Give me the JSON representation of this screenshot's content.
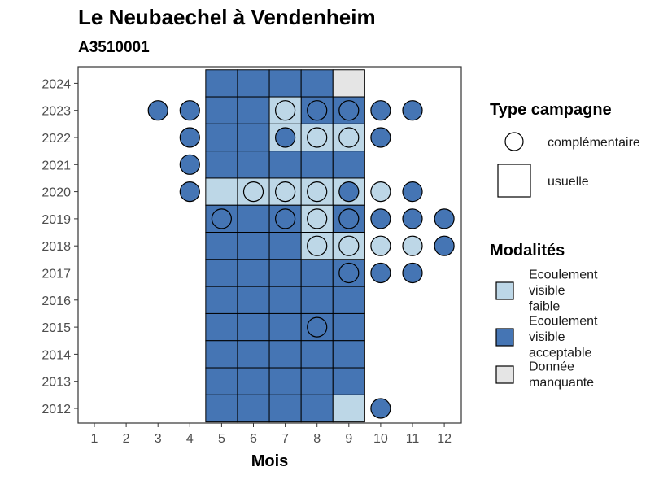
{
  "chart_data": {
    "type": "heatmap",
    "title": "Le Neubaechel à Vendenheim",
    "subtitle": "A3510001",
    "xlabel": "Mois",
    "ylabel": "",
    "x_ticks": [
      "1",
      "2",
      "3",
      "4",
      "5",
      "6",
      "7",
      "8",
      "9",
      "10",
      "11",
      "12"
    ],
    "y_ticks": [
      "2012",
      "2013",
      "2014",
      "2015",
      "2016",
      "2017",
      "2018",
      "2019",
      "2020",
      "2021",
      "2022",
      "2023",
      "2024"
    ],
    "colors": {
      "faible": "#BDD7E7",
      "acceptable": "#4575B4",
      "manquante": "#E5E5E5"
    },
    "legend_type": {
      "title": "Type campagne",
      "items": [
        {
          "shape": "circle",
          "label": "complémentaire"
        },
        {
          "shape": "square",
          "label": "usuelle"
        }
      ]
    },
    "legend_modalites": {
      "title": "Modalités",
      "items": [
        {
          "key": "faible",
          "lines": [
            "Ecoulement",
            "visible",
            "faible"
          ]
        },
        {
          "key": "acceptable",
          "lines": [
            "Ecoulement",
            "visible",
            "acceptable"
          ]
        },
        {
          "key": "manquante",
          "lines": [
            "Donnée",
            "manquante"
          ]
        }
      ]
    },
    "usuelle": [
      {
        "year": 2024,
        "months": [
          5,
          6,
          7,
          8
        ],
        "value": "acceptable"
      },
      {
        "year": 2024,
        "months": [
          9
        ],
        "value": "manquante"
      },
      {
        "year": 2023,
        "months": [
          5,
          6,
          8,
          9
        ],
        "value": "acceptable"
      },
      {
        "year": 2023,
        "months": [
          7
        ],
        "value": "faible"
      },
      {
        "year": 2022,
        "months": [
          5,
          6
        ],
        "value": "acceptable"
      },
      {
        "year": 2022,
        "months": [
          7,
          8,
          9
        ],
        "value": "faible"
      },
      {
        "year": 2021,
        "months": [
          5,
          6,
          7,
          8,
          9
        ],
        "value": "acceptable"
      },
      {
        "year": 2020,
        "months": [
          5,
          6,
          7,
          8,
          9
        ],
        "value": "faible"
      },
      {
        "year": 2019,
        "months": [
          5,
          6,
          7,
          9
        ],
        "value": "acceptable"
      },
      {
        "year": 2019,
        "months": [
          8
        ],
        "value": "faible"
      },
      {
        "year": 2018,
        "months": [
          5,
          6,
          7
        ],
        "value": "acceptable"
      },
      {
        "year": 2018,
        "months": [
          8,
          9
        ],
        "value": "faible"
      },
      {
        "year": 2017,
        "months": [
          5,
          6,
          7,
          8,
          9
        ],
        "value": "acceptable"
      },
      {
        "year": 2016,
        "months": [
          5,
          6,
          7,
          8,
          9
        ],
        "value": "acceptable"
      },
      {
        "year": 2015,
        "months": [
          5,
          6,
          7,
          8,
          9
        ],
        "value": "acceptable"
      },
      {
        "year": 2014,
        "months": [
          5,
          6,
          7,
          8,
          9
        ],
        "value": "acceptable"
      },
      {
        "year": 2013,
        "months": [
          5,
          6,
          7,
          8,
          9
        ],
        "value": "acceptable"
      },
      {
        "year": 2012,
        "months": [
          5,
          6,
          7,
          8
        ],
        "value": "acceptable"
      },
      {
        "year": 2012,
        "months": [
          9
        ],
        "value": "faible"
      }
    ],
    "complementaire": [
      {
        "year": 2023,
        "month": 3,
        "value": "acceptable"
      },
      {
        "year": 2023,
        "month": 4,
        "value": "acceptable"
      },
      {
        "year": 2023,
        "month": 7,
        "value": "faible"
      },
      {
        "year": 2023,
        "month": 8,
        "value": "acceptable"
      },
      {
        "year": 2023,
        "month": 9,
        "value": "acceptable"
      },
      {
        "year": 2023,
        "month": 10,
        "value": "acceptable"
      },
      {
        "year": 2023,
        "month": 11,
        "value": "acceptable"
      },
      {
        "year": 2022,
        "month": 4,
        "value": "acceptable"
      },
      {
        "year": 2022,
        "month": 7,
        "value": "acceptable"
      },
      {
        "year": 2022,
        "month": 8,
        "value": "faible"
      },
      {
        "year": 2022,
        "month": 9,
        "value": "faible"
      },
      {
        "year": 2022,
        "month": 10,
        "value": "acceptable"
      },
      {
        "year": 2021,
        "month": 4,
        "value": "acceptable"
      },
      {
        "year": 2020,
        "month": 4,
        "value": "acceptable"
      },
      {
        "year": 2020,
        "month": 6,
        "value": "faible"
      },
      {
        "year": 2020,
        "month": 7,
        "value": "faible"
      },
      {
        "year": 2020,
        "month": 8,
        "value": "faible"
      },
      {
        "year": 2020,
        "month": 9,
        "value": "acceptable"
      },
      {
        "year": 2020,
        "month": 10,
        "value": "faible"
      },
      {
        "year": 2020,
        "month": 11,
        "value": "acceptable"
      },
      {
        "year": 2019,
        "month": 5,
        "value": "acceptable"
      },
      {
        "year": 2019,
        "month": 7,
        "value": "acceptable"
      },
      {
        "year": 2019,
        "month": 8,
        "value": "faible"
      },
      {
        "year": 2019,
        "month": 9,
        "value": "acceptable"
      },
      {
        "year": 2019,
        "month": 10,
        "value": "acceptable"
      },
      {
        "year": 2019,
        "month": 11,
        "value": "acceptable"
      },
      {
        "year": 2019,
        "month": 12,
        "value": "acceptable"
      },
      {
        "year": 2018,
        "month": 8,
        "value": "faible"
      },
      {
        "year": 2018,
        "month": 9,
        "value": "faible"
      },
      {
        "year": 2018,
        "month": 10,
        "value": "faible"
      },
      {
        "year": 2018,
        "month": 11,
        "value": "faible"
      },
      {
        "year": 2018,
        "month": 12,
        "value": "acceptable"
      },
      {
        "year": 2017,
        "month": 9,
        "value": "acceptable"
      },
      {
        "year": 2017,
        "month": 10,
        "value": "acceptable"
      },
      {
        "year": 2017,
        "month": 11,
        "value": "acceptable"
      },
      {
        "year": 2015,
        "month": 8,
        "value": "acceptable"
      },
      {
        "year": 2012,
        "month": 10,
        "value": "acceptable"
      }
    ]
  }
}
